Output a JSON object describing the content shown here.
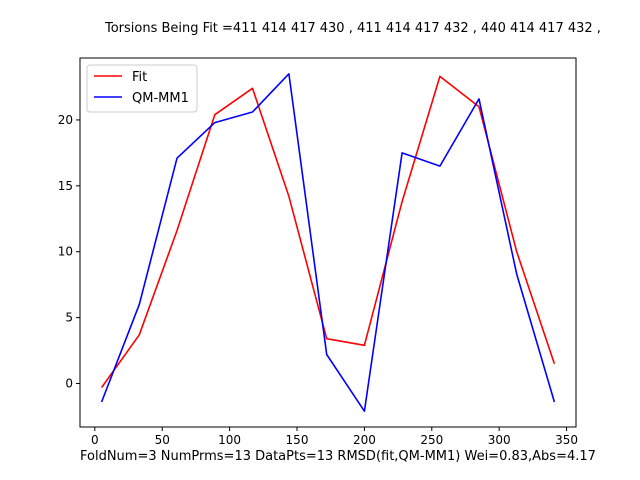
{
  "chart_data": {
    "type": "line",
    "title": "Torsions Being Fit =411 414 417 430 , 411 414 417 432 , 440 414 417 432 ,",
    "footer": "FoldNum=3 NumPrms=13 DataPts=13 RMSD(fit,QM-MM1) Wei=0.83,Abs=4.17",
    "xlabel": "",
    "ylabel": "",
    "xlim": [
      -11,
      357
    ],
    "ylim": [
      -3.3,
      24.7
    ],
    "xticks": [
      0,
      50,
      100,
      150,
      200,
      250,
      300,
      350
    ],
    "yticks": [
      0,
      5,
      10,
      15,
      20
    ],
    "grid": false,
    "legend_position": "upper-left",
    "x": [
      5,
      33,
      61,
      89,
      117,
      144,
      172,
      200,
      228,
      256,
      285,
      313,
      341
    ],
    "series": [
      {
        "name": "Fit",
        "color": "#ff0000",
        "values": [
          -0.3,
          3.7,
          11.6,
          20.4,
          22.4,
          14.2,
          3.4,
          2.9,
          13.8,
          23.3,
          21.0,
          10.0,
          1.5
        ]
      },
      {
        "name": "QM-MM1",
        "color": "#0000ff",
        "values": [
          -1.4,
          6.0,
          17.1,
          19.8,
          20.6,
          23.5,
          2.2,
          -2.1,
          17.5,
          16.5,
          21.6,
          8.3,
          -1.4
        ]
      }
    ]
  }
}
